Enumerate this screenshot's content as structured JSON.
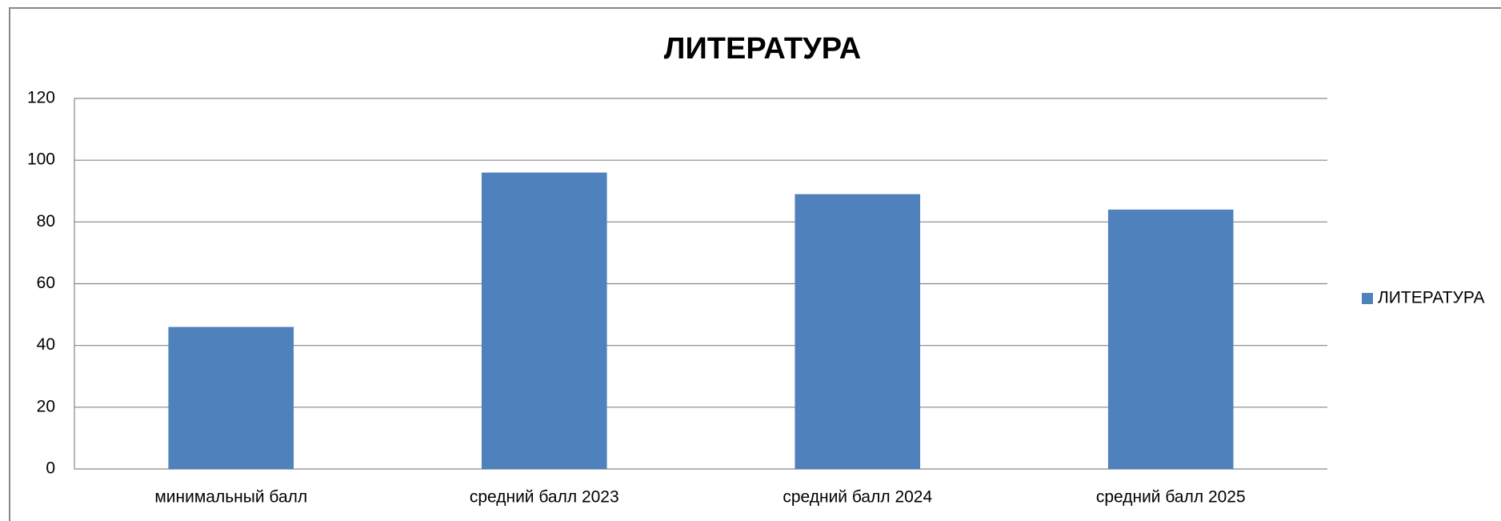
{
  "chart_data": {
    "type": "bar",
    "title": "ЛИТЕРАТУРА",
    "categories": [
      "минимальный балл",
      "средний балл 2023",
      "средний балл 2024",
      "средний балл 2025"
    ],
    "series": [
      {
        "name": "ЛИТЕРАТУРА",
        "color": "#4f81bd",
        "values": [
          46,
          96,
          89,
          84
        ]
      }
    ],
    "ylim": [
      0,
      120
    ],
    "yticks": [
      0,
      20,
      40,
      60,
      80,
      100,
      120
    ],
    "grid": true,
    "legend": "right"
  }
}
